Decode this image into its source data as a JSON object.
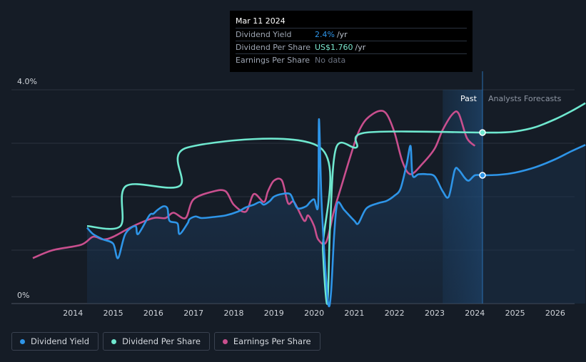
{
  "tooltip": {
    "date": "Mar 11 2024",
    "rows": [
      {
        "label": "Dividend Yield",
        "value": "2.4%",
        "unit": "/yr"
      },
      {
        "label": "Dividend Per Share",
        "value": "US$1.760",
        "unit": "/yr"
      },
      {
        "label": "Earnings Per Share",
        "value": "No data",
        "unit": ""
      }
    ]
  },
  "legend": [
    {
      "label": "Dividend Yield",
      "color": "#2e95e8"
    },
    {
      "label": "Dividend Per Share",
      "color": "#6fe8cf"
    },
    {
      "label": "Earnings Per Share",
      "color": "#c94f8e"
    }
  ],
  "chart_data": {
    "type": "line",
    "y_axis_labels": [
      "4.0%",
      "0%"
    ],
    "ylim": [
      0,
      4.0
    ],
    "x_ticks": [
      "2014",
      "2015",
      "2016",
      "2017",
      "2018",
      "2019",
      "2020",
      "2021",
      "2022",
      "2023",
      "2024",
      "2025",
      "2026"
    ],
    "xlim": [
      2013.0,
      2026.75
    ],
    "past_label": "Past",
    "forecast_label": "Analysts Forecasts",
    "forecast_start": 2023.2,
    "cursor_date": 2024.19,
    "series": [
      {
        "name": "Dividend Yield",
        "color": "#2e95e8",
        "unit": "%",
        "points": [
          [
            2014.35,
            1.42
          ],
          [
            2014.5,
            1.3
          ],
          [
            2014.75,
            1.2
          ],
          [
            2015.0,
            1.12
          ],
          [
            2015.12,
            0.85
          ],
          [
            2015.3,
            1.3
          ],
          [
            2015.55,
            1.45
          ],
          [
            2015.62,
            1.3
          ],
          [
            2015.9,
            1.65
          ],
          [
            2016.0,
            1.68
          ],
          [
            2016.1,
            1.75
          ],
          [
            2016.25,
            1.82
          ],
          [
            2016.35,
            1.78
          ],
          [
            2016.4,
            1.55
          ],
          [
            2016.6,
            1.5
          ],
          [
            2016.65,
            1.3
          ],
          [
            2016.85,
            1.5
          ],
          [
            2016.9,
            1.58
          ],
          [
            2017.05,
            1.63
          ],
          [
            2017.2,
            1.6
          ],
          [
            2017.5,
            1.62
          ],
          [
            2017.8,
            1.65
          ],
          [
            2018.1,
            1.72
          ],
          [
            2018.3,
            1.8
          ],
          [
            2018.5,
            1.85
          ],
          [
            2018.65,
            1.9
          ],
          [
            2018.75,
            1.85
          ],
          [
            2018.9,
            1.92
          ],
          [
            2019.0,
            2.0
          ],
          [
            2019.2,
            2.05
          ],
          [
            2019.4,
            2.05
          ],
          [
            2019.5,
            1.9
          ],
          [
            2019.6,
            1.78
          ],
          [
            2019.8,
            1.82
          ],
          [
            2019.9,
            1.9
          ],
          [
            2020.0,
            1.95
          ],
          [
            2020.1,
            1.85
          ],
          [
            2020.12,
            3.45
          ],
          [
            2020.18,
            2.0
          ],
          [
            2020.25,
            1.0
          ],
          [
            2020.35,
            0.0
          ],
          [
            2020.42,
            0.2
          ],
          [
            2020.5,
            1.3
          ],
          [
            2020.58,
            1.88
          ],
          [
            2020.75,
            1.75
          ],
          [
            2021.0,
            1.55
          ],
          [
            2021.1,
            1.5
          ],
          [
            2021.3,
            1.78
          ],
          [
            2021.6,
            1.88
          ],
          [
            2021.8,
            1.92
          ],
          [
            2022.0,
            2.02
          ],
          [
            2022.15,
            2.15
          ],
          [
            2022.3,
            2.6
          ],
          [
            2022.4,
            2.95
          ],
          [
            2022.45,
            2.4
          ],
          [
            2022.6,
            2.42
          ],
          [
            2022.8,
            2.42
          ],
          [
            2023.0,
            2.38
          ],
          [
            2023.2,
            2.1
          ],
          [
            2023.35,
            2.0
          ],
          [
            2023.5,
            2.5
          ],
          [
            2023.6,
            2.5
          ],
          [
            2023.75,
            2.35
          ],
          [
            2023.85,
            2.3
          ],
          [
            2024.0,
            2.4
          ],
          [
            2024.19,
            2.4
          ]
        ],
        "forecast": [
          [
            2024.19,
            2.4
          ],
          [
            2024.6,
            2.41
          ],
          [
            2025.0,
            2.45
          ],
          [
            2025.5,
            2.55
          ],
          [
            2026.0,
            2.7
          ],
          [
            2026.4,
            2.85
          ],
          [
            2026.75,
            2.97
          ]
        ]
      },
      {
        "name": "Dividend Per Share",
        "color": "#6fe8cf",
        "points": [
          [
            2014.35,
            1.45
          ],
          [
            2015.18,
            1.45
          ],
          [
            2015.32,
            2.2
          ],
          [
            2016.65,
            2.2
          ],
          [
            2016.85,
            2.92
          ],
          [
            2020.15,
            2.92
          ],
          [
            2020.22,
            1.0
          ],
          [
            2020.33,
            0.0
          ],
          [
            2020.4,
            1.5
          ],
          [
            2020.55,
            2.92
          ],
          [
            2021.05,
            2.92
          ],
          [
            2021.3,
            3.2
          ],
          [
            2024.19,
            3.2
          ]
        ],
        "forecast": [
          [
            2024.19,
            3.2
          ],
          [
            2024.6,
            3.2
          ],
          [
            2025.0,
            3.22
          ],
          [
            2025.5,
            3.3
          ],
          [
            2026.0,
            3.45
          ],
          [
            2026.4,
            3.6
          ],
          [
            2026.75,
            3.75
          ]
        ]
      },
      {
        "name": "Earnings Per Share",
        "color": "#c94f8e",
        "points": [
          [
            2013.0,
            0.85
          ],
          [
            2013.5,
            1.0
          ],
          [
            2014.2,
            1.1
          ],
          [
            2014.5,
            1.25
          ],
          [
            2014.75,
            1.2
          ],
          [
            2015.0,
            1.25
          ],
          [
            2015.5,
            1.45
          ],
          [
            2016.0,
            1.6
          ],
          [
            2016.3,
            1.6
          ],
          [
            2016.5,
            1.7
          ],
          [
            2016.8,
            1.6
          ],
          [
            2017.0,
            1.95
          ],
          [
            2017.5,
            2.1
          ],
          [
            2017.8,
            2.1
          ],
          [
            2018.0,
            1.85
          ],
          [
            2018.3,
            1.72
          ],
          [
            2018.5,
            2.05
          ],
          [
            2018.75,
            1.9
          ],
          [
            2018.85,
            2.1
          ],
          [
            2019.0,
            2.3
          ],
          [
            2019.2,
            2.3
          ],
          [
            2019.35,
            1.88
          ],
          [
            2019.5,
            1.9
          ],
          [
            2019.75,
            1.55
          ],
          [
            2019.85,
            1.65
          ],
          [
            2020.0,
            1.45
          ],
          [
            2020.1,
            1.2
          ],
          [
            2020.3,
            1.15
          ],
          [
            2020.5,
            1.75
          ],
          [
            2020.7,
            2.25
          ],
          [
            2020.9,
            2.75
          ],
          [
            2021.1,
            3.2
          ],
          [
            2021.3,
            3.45
          ],
          [
            2021.6,
            3.6
          ],
          [
            2021.8,
            3.55
          ],
          [
            2022.0,
            3.2
          ],
          [
            2022.2,
            2.65
          ],
          [
            2022.4,
            2.42
          ],
          [
            2022.7,
            2.62
          ],
          [
            2023.0,
            2.9
          ],
          [
            2023.2,
            3.25
          ],
          [
            2023.45,
            3.55
          ],
          [
            2023.6,
            3.55
          ],
          [
            2023.8,
            3.1
          ],
          [
            2024.0,
            2.95
          ]
        ]
      }
    ]
  }
}
